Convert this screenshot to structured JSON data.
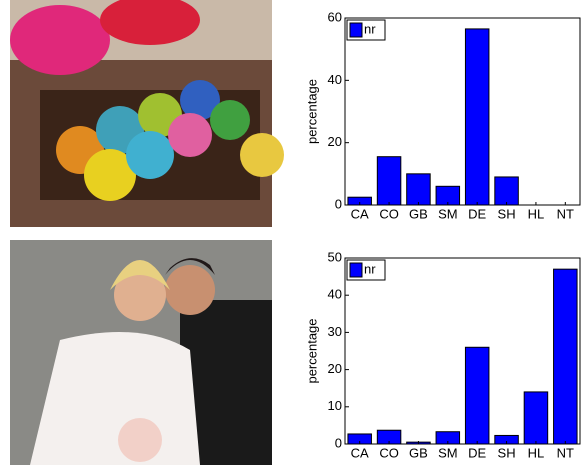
{
  "chart_data": [
    {
      "type": "bar",
      "ylabel": "percentage",
      "categories": [
        "CA",
        "CO",
        "GB",
        "SM",
        "DE",
        "SH",
        "HL",
        "NT"
      ],
      "series": [
        {
          "name": "nr",
          "color": "#0000ff",
          "values": [
            2.5,
            15.5,
            10,
            6,
            56.5,
            9,
            0,
            0
          ]
        }
      ],
      "ylim": [
        0,
        60
      ],
      "yticks": [
        0,
        20,
        40,
        60
      ]
    },
    {
      "type": "bar",
      "ylabel": "percentage",
      "categories": [
        "CA",
        "CO",
        "GB",
        "SM",
        "DE",
        "SH",
        "HL",
        "NT"
      ],
      "series": [
        {
          "name": "nr",
          "color": "#0000ff",
          "values": [
            2.7,
            3.7,
            0.5,
            3.3,
            26,
            2.3,
            14,
            47
          ]
        }
      ],
      "ylim": [
        0,
        50
      ],
      "yticks": [
        0,
        10,
        20,
        30,
        40,
        50
      ]
    }
  ]
}
